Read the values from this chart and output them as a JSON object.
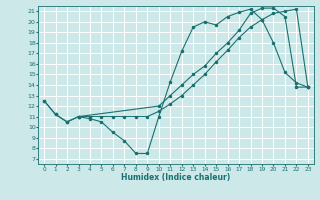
{
  "xlabel": "Humidex (Indice chaleur)",
  "bg_color": "#cce8e8",
  "grid_color": "#ffffff",
  "line_color": "#1a7070",
  "xlim": [
    -0.5,
    23.5
  ],
  "ylim": [
    6.5,
    21.5
  ],
  "xticks": [
    0,
    1,
    2,
    3,
    4,
    5,
    6,
    7,
    8,
    9,
    10,
    11,
    12,
    13,
    14,
    15,
    16,
    17,
    18,
    19,
    20,
    21,
    22,
    23
  ],
  "yticks": [
    7,
    8,
    9,
    10,
    11,
    12,
    13,
    14,
    15,
    16,
    17,
    18,
    19,
    20,
    21
  ],
  "series": [
    {
      "x": [
        0,
        1,
        2,
        3,
        4,
        5,
        6,
        7,
        8,
        9,
        10,
        11,
        12,
        13,
        14,
        15,
        16,
        17,
        18,
        19,
        20,
        21,
        22,
        23
      ],
      "y": [
        12.5,
        11.2,
        10.5,
        11.0,
        10.8,
        10.5,
        9.5,
        8.7,
        7.5,
        7.5,
        11.0,
        14.3,
        17.2,
        19.5,
        20.0,
        19.7,
        20.5,
        20.9,
        21.2,
        20.2,
        18.0,
        15.2,
        14.2,
        13.8
      ]
    },
    {
      "x": [
        0,
        1,
        2,
        3,
        4,
        5,
        6,
        7,
        8,
        9,
        10,
        11,
        12,
        13,
        14,
        15,
        16,
        17,
        18,
        19,
        20,
        21,
        22,
        23
      ],
      "y": [
        12.5,
        11.2,
        10.5,
        11.0,
        11.0,
        11.0,
        11.0,
        11.0,
        11.0,
        11.0,
        11.5,
        12.2,
        13.0,
        14.0,
        15.0,
        16.2,
        17.3,
        18.5,
        19.5,
        20.2,
        20.8,
        21.0,
        21.2,
        13.8
      ]
    },
    {
      "x": [
        3,
        10,
        11,
        12,
        13,
        14,
        15,
        16,
        17,
        18,
        19,
        20,
        21,
        22,
        23
      ],
      "y": [
        11.0,
        12.0,
        13.0,
        14.0,
        15.0,
        15.8,
        17.0,
        18.0,
        19.2,
        20.8,
        21.3,
        21.3,
        20.5,
        13.8,
        13.8
      ]
    }
  ]
}
